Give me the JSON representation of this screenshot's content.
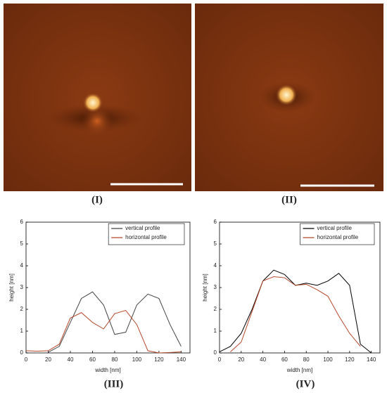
{
  "images": [
    {
      "caption": "(I)"
    },
    {
      "caption": "(II)"
    }
  ],
  "chart_data": [
    {
      "type": "line",
      "caption": "(III)",
      "xlabel": "width [nm]",
      "ylabel": "height [nm]",
      "x": [
        0,
        10,
        20,
        30,
        40,
        50,
        60,
        70,
        80,
        90,
        100,
        110,
        120,
        130,
        140
      ],
      "series": [
        {
          "name": "vertical profile",
          "color": "#444444",
          "values": [
            null,
            null,
            0.03,
            0.3,
            1.4,
            2.5,
            2.8,
            2.2,
            0.85,
            0.95,
            2.2,
            2.7,
            2.5,
            1.3,
            0.3
          ]
        },
        {
          "name": "horizontal profile",
          "color": "#b5472a",
          "values": [
            0.1,
            0.08,
            0.1,
            0.4,
            1.6,
            1.85,
            1.4,
            1.1,
            1.8,
            1.95,
            1.3,
            0.1,
            0,
            0.02,
            0.05
          ]
        }
      ],
      "xlim": [
        0,
        148
      ],
      "ylim": [
        0,
        6
      ],
      "xticks": [
        0,
        20,
        40,
        60,
        80,
        100,
        120,
        140
      ],
      "yticks": [
        0,
        1,
        2,
        3,
        4,
        5,
        6
      ],
      "grid": false
    },
    {
      "type": "line",
      "caption": "(IV)",
      "xlabel": "width [nm]",
      "ylabel": "height [nm]",
      "x": [
        0,
        10,
        20,
        30,
        40,
        50,
        60,
        70,
        80,
        90,
        100,
        110,
        120,
        130,
        140
      ],
      "series": [
        {
          "name": "vertical profile",
          "color": "#000000",
          "values": [
            0.05,
            0.3,
            0.9,
            2.0,
            3.3,
            3.8,
            3.6,
            3.1,
            3.2,
            3.1,
            3.3,
            3.65,
            3.1,
            0.4,
            0
          ]
        },
        {
          "name": "horizontal profile",
          "color": "#b5472a",
          "values": [
            null,
            0.05,
            0.5,
            1.9,
            3.3,
            3.5,
            3.45,
            3.1,
            3.15,
            2.9,
            2.6,
            1.7,
            0.9,
            0.3,
            null
          ]
        }
      ],
      "xlim": [
        0,
        148
      ],
      "ylim": [
        0,
        6
      ],
      "xticks": [
        0,
        20,
        40,
        60,
        80,
        100,
        120,
        140
      ],
      "yticks": [
        0,
        1,
        2,
        3,
        4,
        5,
        6
      ],
      "grid": false
    }
  ]
}
